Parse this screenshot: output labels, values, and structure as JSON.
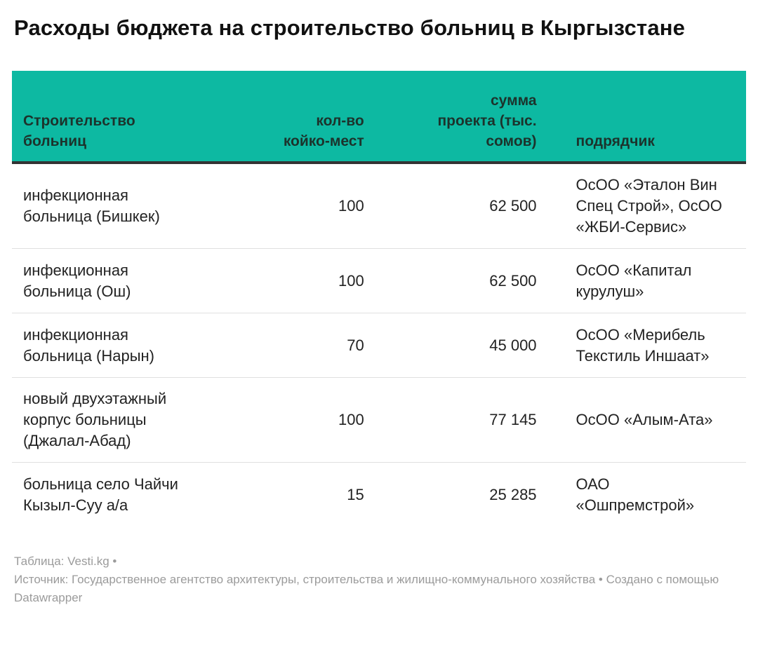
{
  "title": "Расходы бюджета на строительство больниц в Кыргызстане",
  "chart_data": {
    "type": "table",
    "title": "Расходы бюджета на строительство больниц в Кыргызстане",
    "columns": [
      "Строительство больниц",
      "кол-во койко-мест",
      "сумма проекта (тыс. сомов)",
      "подрядчик"
    ],
    "rows": [
      [
        "инфекционная больница (Бишкек)",
        100,
        62500,
        "ОсОО «Эталон Вин Спец Строй», ОсОО «ЖБИ-Сервис»"
      ],
      [
        "инфекционная больница (Ош)",
        100,
        62500,
        "ОсОО «Капитал курулуш»"
      ],
      [
        "инфекционная больница (Нарын)",
        70,
        45000,
        "ОсОО «Мерибель Текстиль Иншаат»"
      ],
      [
        "новый двухэтажный корпус больницы (Джалал-Абад)",
        100,
        77145,
        "ОсОО «Алым-Ата»"
      ],
      [
        "больница село Чайчи Кызыл-Суу а/а",
        15,
        25285,
        "ОАО «Ошпремстрой»"
      ]
    ]
  },
  "colors": {
    "header_bg": "#0db9a2",
    "header_text": "#1c332c",
    "header_border": "#333333",
    "body_text": "#222222",
    "row_divider": "#e0e0e0",
    "footer_text": "#9b9b9b",
    "page_bg": "#ffffff"
  },
  "table_display": {
    "headers": {
      "hospital": "Строительство\nбольниц",
      "beds": "кол-во\nкойко-мест",
      "amount": "сумма\nпроекта (тыс.\nсомов)",
      "contractor": "подрядчик"
    },
    "rows": [
      {
        "hospital": "инфекционная\nбольница (Бишкек)",
        "beds": "100",
        "amount": "62 500",
        "contractor": "ОсОО «Эталон Вин\nСпец Строй», ОсОО\n«ЖБИ-Сервис»"
      },
      {
        "hospital": "инфекционная\nбольница (Ош)",
        "beds": "100",
        "amount": "62 500",
        "contractor": "ОсОО «Капитал\nкурулуш»"
      },
      {
        "hospital": "инфекционная\nбольница (Нарын)",
        "beds": "70",
        "amount": "45 000",
        "contractor": "ОсОО «Мерибель\nТекстиль Иншаат»"
      },
      {
        "hospital": "новый двухэтажный\nкорпус больницы\n(Джалал-Абад)",
        "beds": "100",
        "amount": "77 145",
        "contractor": "ОсОО «Алым-Ата»"
      },
      {
        "hospital": "больница село Чайчи\nКызыл-Суу а/а",
        "beds": "15",
        "amount": "25 285",
        "contractor": "ОАО\n«Ошпремстрой»"
      }
    ]
  },
  "footer": {
    "table_label": "Таблица: ",
    "table_source": "Vesti.kg",
    "separator1": " •",
    "source_label": "Источник: ",
    "source_name": "Государственное агентство архитектуры, строительства и жилищно-коммунального хозяйства",
    "separator2": " • ",
    "created_label": "Создано с помощью ",
    "created_tool": "Datawrapper"
  }
}
